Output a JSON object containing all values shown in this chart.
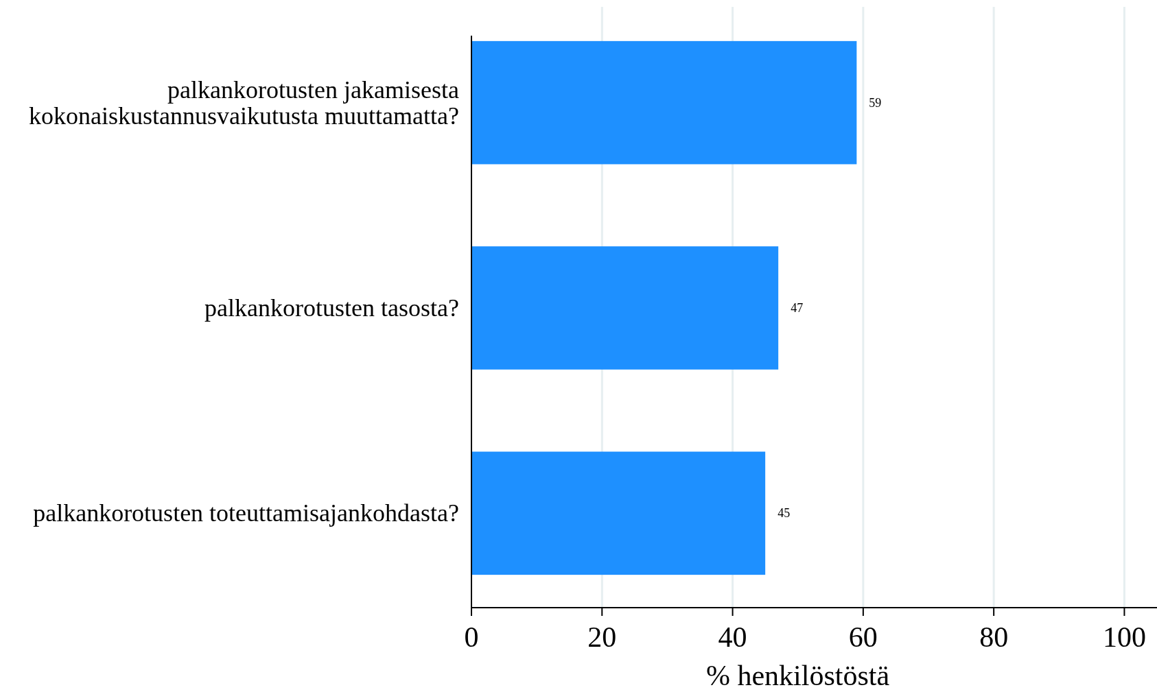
{
  "chart_data": {
    "type": "bar",
    "orientation": "horizontal",
    "categories": [
      "palkankorotusten jakamisesta kokonaiskustannusvaikutusta muuttamatta?",
      "palkankorotusten tasosta?",
      "palkankorotusten toteuttamisajankohdasta?"
    ],
    "values": [
      59,
      47,
      45
    ],
    "color": "#1e90ff",
    "xlim": [
      0,
      105
    ],
    "xticks": [
      0,
      20,
      40,
      60,
      80,
      100
    ],
    "xlabel": "% henkilöstöstä",
    "grid": "x",
    "data_labels": true
  }
}
